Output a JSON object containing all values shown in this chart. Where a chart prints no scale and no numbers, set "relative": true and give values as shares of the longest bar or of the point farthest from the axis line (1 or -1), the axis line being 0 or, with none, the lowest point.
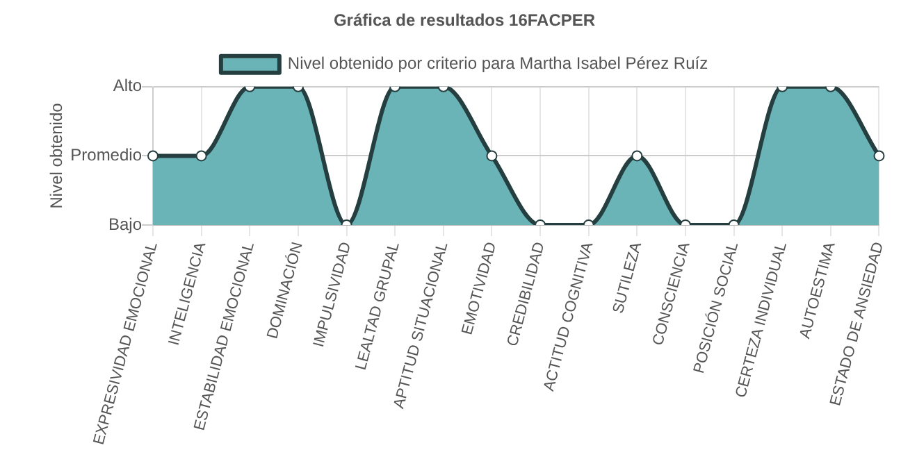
{
  "chart_data": {
    "type": "area",
    "title": "Gráfica de resultados 16FACPER",
    "ylabel": "Nivel obtenido",
    "categories": [
      "EXPRESIVIDAD EMOCIONAL",
      "INTELIGENCIA",
      "ESTABILIDAD EMOCIONAL",
      "DOMINACIÓN",
      "IMPULSIVIDAD",
      "LEALTAD GRUPAL",
      "APTITUD SITUACIONAL",
      "EMOTIVIDAD",
      "CREDIBILIDAD",
      "ACTITUD COGNITIVA",
      "SUTILEZA",
      "CONSCIENCIA",
      "POSICIÓN SOCIAL",
      "CERTEZA INDIVIDUAL",
      "AUTOESTIMA",
      "ESTADO DE ANSIEDAD"
    ],
    "series": [
      {
        "name": "Nivel obtenido por criterio para Martha Isabel Pérez Ruíz",
        "color": "#6ab3b6",
        "values": [
          0.5,
          0.5,
          1,
          1,
          0,
          1,
          1,
          0.5,
          0,
          0,
          0.5,
          0,
          0,
          1,
          1,
          0.5
        ]
      }
    ],
    "relative": true,
    "annotations": [
      "Bajo",
      "Promedio",
      "Alto"
    ],
    "grid": true,
    "legend": "top",
    "marker": "circle"
  }
}
